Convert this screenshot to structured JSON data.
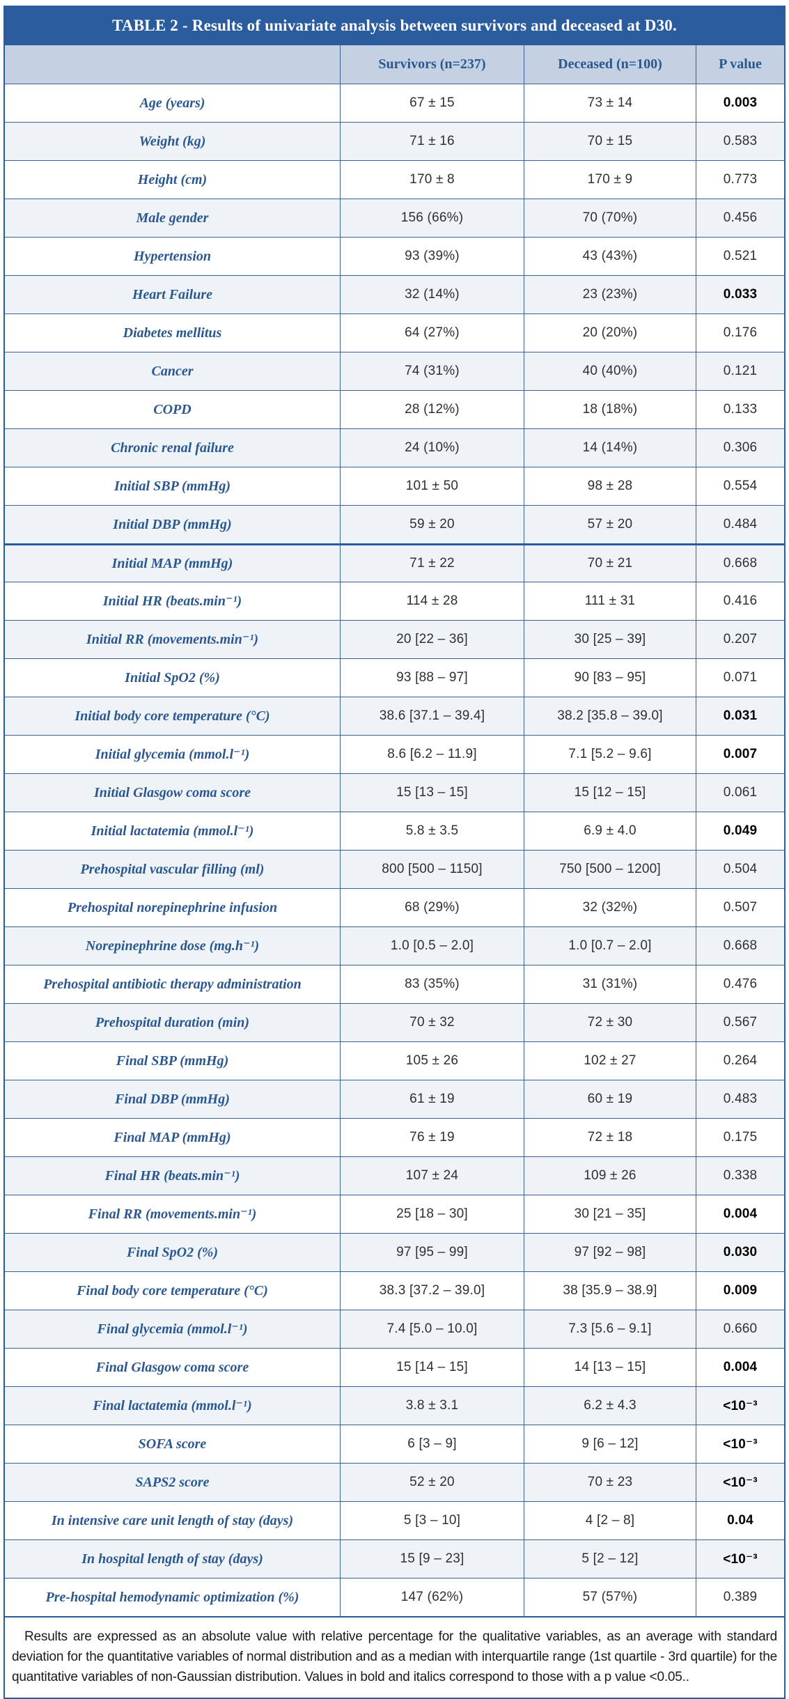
{
  "table": {
    "title": "TABLE 2 - Results of univariate analysis between survivors and deceased at D30.",
    "columns": [
      "",
      "Survivors (n=237)",
      "Deceased (n=100)",
      "P value"
    ],
    "rows": [
      {
        "label": "Age (years)",
        "survivors": "67 ± 15",
        "deceased": "73 ± 14",
        "p": "0.003",
        "significant": true
      },
      {
        "label": "Weight (kg)",
        "survivors": "71 ± 16",
        "deceased": "70 ± 15",
        "p": "0.583",
        "significant": false
      },
      {
        "label": "Height (cm)",
        "survivors": "170 ± 8",
        "deceased": "170 ± 9",
        "p": "0.773",
        "significant": false
      },
      {
        "label": "Male gender",
        "survivors": "156 (66%)",
        "deceased": "70 (70%)",
        "p": "0.456",
        "significant": false
      },
      {
        "label": "Hypertension",
        "survivors": "93 (39%)",
        "deceased": "43 (43%)",
        "p": "0.521",
        "significant": false
      },
      {
        "label": "Heart Failure",
        "survivors": "32 (14%)",
        "deceased": "23 (23%)",
        "p": "0.033",
        "significant": true
      },
      {
        "label": "Diabetes mellitus",
        "survivors": "64 (27%)",
        "deceased": "20 (20%)",
        "p": "0.176",
        "significant": false
      },
      {
        "label": "Cancer",
        "survivors": "74 (31%)",
        "deceased": "40 (40%)",
        "p": "0.121",
        "significant": false
      },
      {
        "label": "COPD",
        "survivors": "28 (12%)",
        "deceased": "18 (18%)",
        "p": "0.133",
        "significant": false
      },
      {
        "label": "Chronic renal failure",
        "survivors": "24 (10%)",
        "deceased": "14 (14%)",
        "p": "0.306",
        "significant": false
      },
      {
        "label": "Initial SBP (mmHg)",
        "survivors": "101 ± 50",
        "deceased": "98 ± 28",
        "p": "0.554",
        "significant": false
      },
      {
        "label": "Initial DBP (mmHg)",
        "survivors": "59 ± 20",
        "deceased": "57 ± 20",
        "p": "0.484",
        "significant": false
      },
      {
        "label": "Initial MAP (mmHg)",
        "survivors": "71 ± 22",
        "deceased": "70 ± 21",
        "p": "0.668",
        "significant": false
      },
      {
        "label": "Initial HR (beats.min⁻¹)",
        "survivors": "114 ± 28",
        "deceased": "111 ± 31",
        "p": "0.416",
        "significant": false
      },
      {
        "label": "Initial RR (movements.min⁻¹)",
        "survivors": "20 [22 – 36]",
        "deceased": "30 [25 – 39]",
        "p": "0.207",
        "significant": false
      },
      {
        "label": "Initial SpO2 (%)",
        "survivors": "93 [88 – 97]",
        "deceased": "90 [83 – 95]",
        "p": "0.071",
        "significant": false
      },
      {
        "label": "Initial body core temperature (°C)",
        "survivors": "38.6 [37.1 – 39.4]",
        "deceased": "38.2 [35.8 – 39.0]",
        "p": "0.031",
        "significant": true
      },
      {
        "label": "Initial glycemia (mmol.l⁻¹)",
        "survivors": "8.6 [6.2 – 11.9]",
        "deceased": "7.1 [5.2 – 9.6]",
        "p": "0.007",
        "significant": true
      },
      {
        "label": "Initial Glasgow coma score",
        "survivors": "15 [13 – 15]",
        "deceased": "15 [12 – 15]",
        "p": "0.061",
        "significant": false
      },
      {
        "label": "Initial lactatemia (mmol.l⁻¹)",
        "survivors": "5.8 ± 3.5",
        "deceased": "6.9 ± 4.0",
        "p": "0.049",
        "significant": true
      },
      {
        "label": "Prehospital vascular filling (ml)",
        "survivors": "800 [500 – 1150]",
        "deceased": "750 [500 – 1200]",
        "p": "0.504",
        "significant": false
      },
      {
        "label": "Prehospital norepinephrine infusion",
        "survivors": "68 (29%)",
        "deceased": "32 (32%)",
        "p": "0.507",
        "significant": false
      },
      {
        "label": "Norepinephrine dose (mg.h⁻¹)",
        "survivors": "1.0 [0.5 – 2.0]",
        "deceased": "1.0 [0.7 – 2.0]",
        "p": "0.668",
        "significant": false
      },
      {
        "label": "Prehospital antibiotic therapy administration",
        "survivors": "83 (35%)",
        "deceased": "31 (31%)",
        "p": "0.476",
        "significant": false
      },
      {
        "label": "Prehospital duration (min)",
        "survivors": "70 ± 32",
        "deceased": "72 ± 30",
        "p": "0.567",
        "significant": false
      },
      {
        "label": "Final SBP (mmHg)",
        "survivors": "105 ± 26",
        "deceased": "102 ± 27",
        "p": "0.264",
        "significant": false
      },
      {
        "label": "Final DBP (mmHg)",
        "survivors": "61 ± 19",
        "deceased": "60 ± 19",
        "p": "0.483",
        "significant": false
      },
      {
        "label": "Final MAP (mmHg)",
        "survivors": "76 ± 19",
        "deceased": "72 ± 18",
        "p": "0.175",
        "significant": false
      },
      {
        "label": "Final HR (beats.min⁻¹)",
        "survivors": "107 ± 24",
        "deceased": "109 ± 26",
        "p": "0.338",
        "significant": false
      },
      {
        "label": "Final RR (movements.min⁻¹)",
        "survivors": "25 [18 – 30]",
        "deceased": "30 [21 – 35]",
        "p": "0.004",
        "significant": true
      },
      {
        "label": "Final SpO2 (%)",
        "survivors": "97 [95 – 99]",
        "deceased": "97 [92 – 98]",
        "p": "0.030",
        "significant": true
      },
      {
        "label": "Final body core temperature (°C)",
        "survivors": "38.3 [37.2 – 39.0]",
        "deceased": "38 [35.9 – 38.9]",
        "p": "0.009",
        "significant": true
      },
      {
        "label": "Final glycemia (mmol.l⁻¹)",
        "survivors": "7.4 [5.0 – 10.0]",
        "deceased": "7.3 [5.6 – 9.1]",
        "p": "0.660",
        "significant": false
      },
      {
        "label": "Final Glasgow coma score",
        "survivors": "15 [14 – 15]",
        "deceased": "14 [13 – 15]",
        "p": "0.004",
        "significant": true
      },
      {
        "label": "Final lactatemia (mmol.l⁻¹)",
        "survivors": "3.8 ± 3.1",
        "deceased": "6.2 ± 4.3",
        "p": "<10⁻³",
        "significant": true
      },
      {
        "label": "SOFA score",
        "survivors": "6 [3 – 9]",
        "deceased": "9 [6 – 12]",
        "p": "<10⁻³",
        "significant": true
      },
      {
        "label": "SAPS2 score",
        "survivors": "52 ± 20",
        "deceased": "70 ± 23",
        "p": "<10⁻³",
        "significant": true
      },
      {
        "label": "In intensive care unit length of stay (days)",
        "survivors": "5 [3 – 10]",
        "deceased": "4 [2 – 8]",
        "p": "0.04",
        "significant": true
      },
      {
        "label": "In hospital length of stay (days)",
        "survivors": "15 [9 – 23]",
        "deceased": "5 [2 – 12]",
        "p": "<10⁻³",
        "significant": true
      },
      {
        "label": "Pre-hospital hemodynamic optimization (%)",
        "survivors": "147 (62%)",
        "deceased": "57 (57%)",
        "p": "0.389",
        "significant": false
      }
    ],
    "section_break_row_index": 12,
    "footnote": "Results are expressed as an absolute value with relative percentage for the qualitative variables, as an average with standard deviation for the quantitative variables of normal distribution and as a median with interquartile range (1st quartile - 3rd quartile) for the quantitative variables of non-Gaussian distribution. Values in bold and italics correspond to those with a p value <0.05.."
  },
  "colors": {
    "title_bar": "#2B5C9E",
    "header_row_bg": "#C3D1E3",
    "label_text": "#2B578F",
    "grid_border": "#3A6190",
    "shaded_row_bg": "#EEF3F8",
    "significant_p_text": "#000000"
  }
}
